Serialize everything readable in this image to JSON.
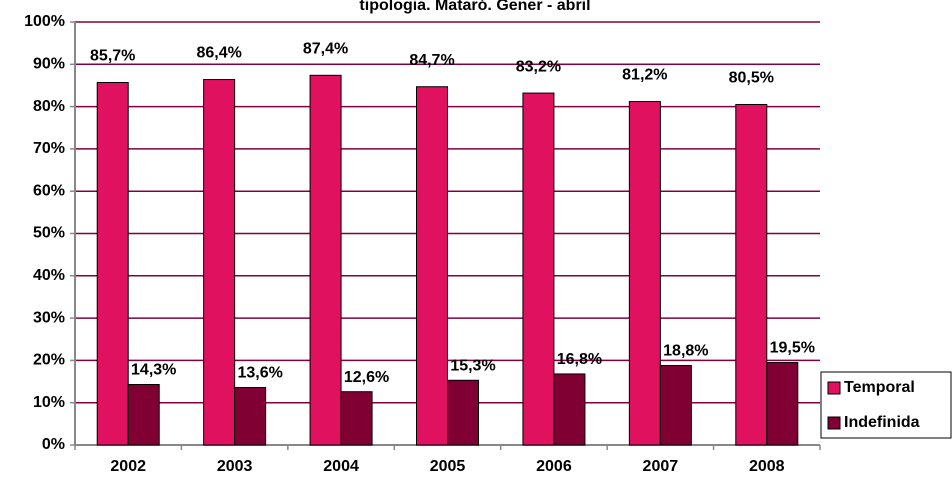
{
  "chart_data": {
    "type": "bar",
    "title": "tipologia. Mataró. Gener - abril",
    "categories": [
      "2002",
      "2003",
      "2004",
      "2005",
      "2006",
      "2007",
      "2008"
    ],
    "series": [
      {
        "name": "Temporal",
        "color": "#e0115f",
        "values": [
          85.7,
          86.4,
          87.4,
          84.7,
          83.2,
          81.2,
          80.5
        ],
        "value_labels": [
          "85,7%",
          "86,4%",
          "87,4%",
          "84,7%",
          "83,2%",
          "81,2%",
          "80,5%"
        ]
      },
      {
        "name": "Indefinida",
        "color": "#800033",
        "values": [
          14.3,
          13.6,
          12.6,
          15.3,
          16.8,
          18.8,
          19.5
        ],
        "value_labels": [
          "14,3%",
          "13,6%",
          "12,6%",
          "15,3%",
          "16,8%",
          "18,8%",
          "19,5%"
        ]
      }
    ],
    "ylim": [
      0,
      100
    ],
    "yticks": [
      {
        "value": 0,
        "label": "0%"
      },
      {
        "value": 10,
        "label": "10%"
      },
      {
        "value": 20,
        "label": "20%"
      },
      {
        "value": 30,
        "label": "30%"
      },
      {
        "value": 40,
        "label": "40%"
      },
      {
        "value": 50,
        "label": "50%"
      },
      {
        "value": 60,
        "label": "60%"
      },
      {
        "value": 70,
        "label": "70%"
      },
      {
        "value": 80,
        "label": "80%"
      },
      {
        "value": 90,
        "label": "90%"
      },
      {
        "value": 100,
        "label": "100%"
      }
    ],
    "grid": true,
    "legend": "right"
  }
}
